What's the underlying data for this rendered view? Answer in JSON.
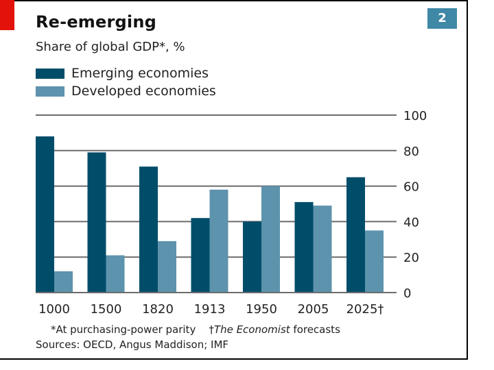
{
  "header": {
    "title": "Re-emerging",
    "subtitle": "Share of global GDP*, %",
    "badge": "2"
  },
  "colors": {
    "emerging": "#004d6a",
    "developed": "#5d93ad",
    "accent_red": "#e3120b",
    "badge": "#3f88a6",
    "grid": "#6b6b6b"
  },
  "footer": {
    "footnote_star": "*At purchasing-power parity",
    "footnote_dagger_mark": "†",
    "footnote_dagger_italic": "The Economist",
    "footnote_dagger_rest": " forecasts",
    "sources": "Sources: OECD, Angus Maddison; IMF"
  },
  "chart_data": {
    "type": "bar",
    "title": "Re-emerging",
    "subtitle": "Share of global GDP*, %",
    "xlabel": "",
    "ylabel": "%",
    "categories": [
      "1000",
      "1500",
      "1820",
      "1913",
      "1950",
      "2005",
      "2025†"
    ],
    "series": [
      {
        "name": "Emerging economies",
        "values": [
          88,
          79,
          71,
          42,
          40,
          51,
          65
        ]
      },
      {
        "name": "Developed economies",
        "values": [
          12,
          21,
          29,
          58,
          60,
          49,
          35
        ]
      }
    ],
    "ylim": [
      0,
      100
    ],
    "yticks": [
      "0",
      "20",
      "40",
      "60",
      "80",
      "100"
    ],
    "ytick_values": [
      0,
      20,
      40,
      60,
      80,
      100
    ],
    "y_axis_side": "right",
    "grid": true,
    "legend_position": "top-left"
  }
}
